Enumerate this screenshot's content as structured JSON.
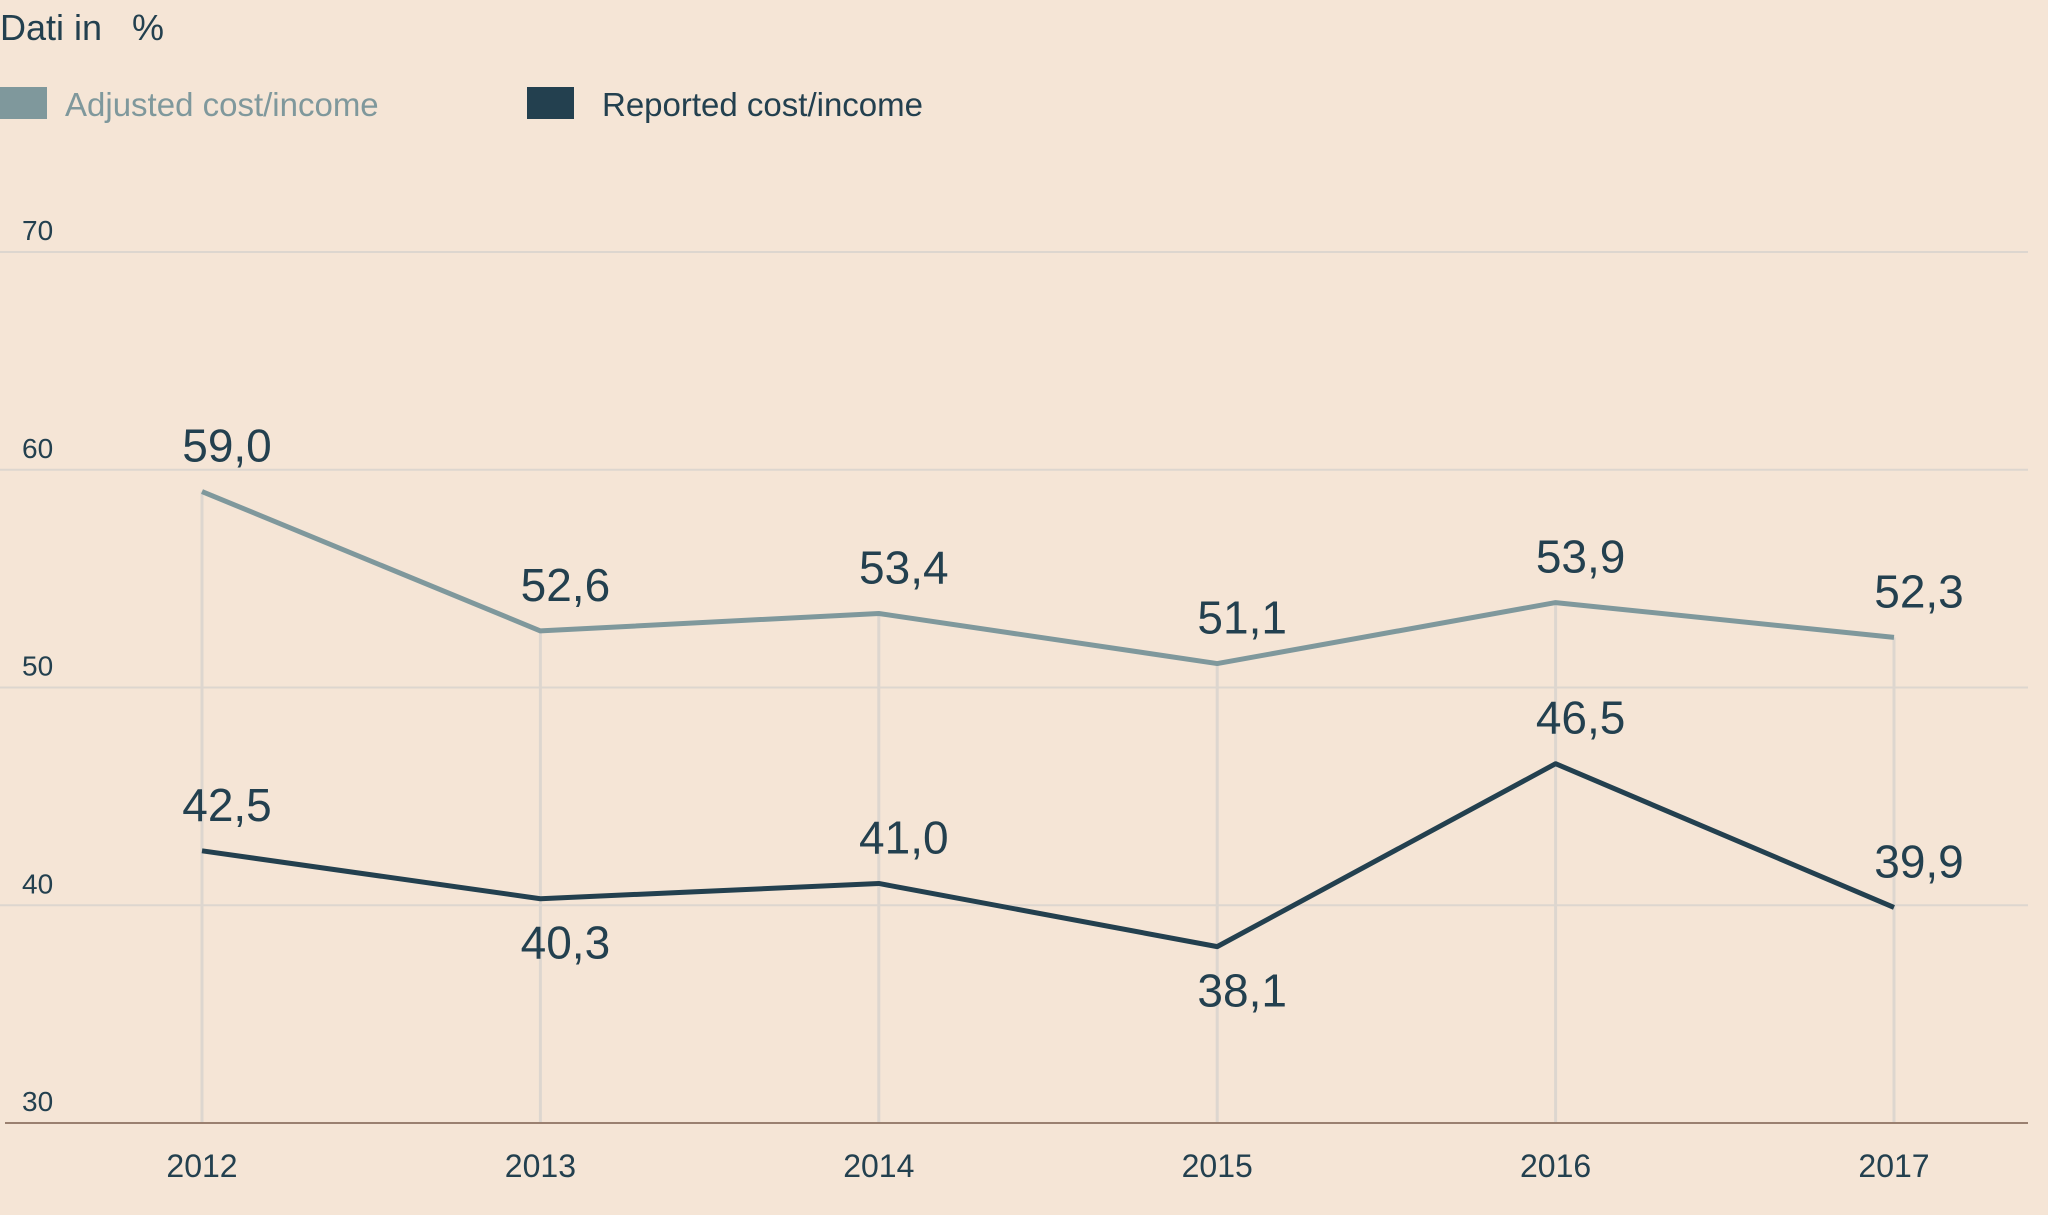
{
  "chart_data": {
    "type": "line",
    "title": "Dati in   %",
    "categories": [
      "2012",
      "2013",
      "2014",
      "2015",
      "2016",
      "2017"
    ],
    "series": [
      {
        "name": "Adjusted cost/income",
        "color": "#7f989c",
        "values": [
          59.0,
          52.6,
          53.4,
          51.1,
          53.9,
          52.3
        ],
        "labels": [
          "59,0",
          "52,6",
          "53,4",
          "51,1",
          "53,9",
          "52,3"
        ]
      },
      {
        "name": "Reported cost/income",
        "color": "#23404f",
        "values": [
          42.5,
          40.3,
          41.0,
          38.1,
          46.5,
          39.9
        ],
        "labels": [
          "42,5",
          "40,3",
          "41,0",
          "38,1",
          "46,5",
          "39,9"
        ]
      }
    ],
    "yticks": [
      "70",
      "60",
      "50",
      "40",
      "30"
    ],
    "ylim": [
      30,
      70
    ],
    "grid": true,
    "legend": "top-left",
    "background": "#f5e5d6"
  }
}
